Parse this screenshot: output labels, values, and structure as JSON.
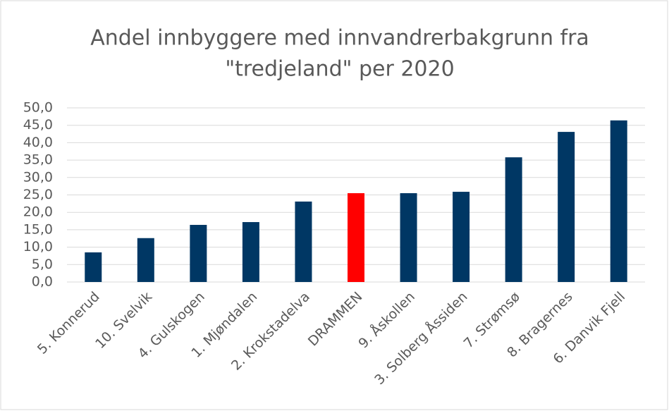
{
  "chart_data": {
    "type": "bar",
    "title": [
      "Andel innbyggere med innvandrerbakgrunn fra",
      "\"tredjeland\" per 2020"
    ],
    "categories": [
      "5. Konnerud",
      "10. Svelvik",
      "4. Gulskogen",
      "1. Mjøndalen",
      "2. Krokstadelva",
      "DRAMMEN",
      "9. Åskollen",
      "3. Solberg Åssiden",
      "7. Strømsø",
      "8. Bragernes",
      "6. Danvik Fjell"
    ],
    "values": [
      8.5,
      12.6,
      16.4,
      17.2,
      23.1,
      25.5,
      25.5,
      25.9,
      35.8,
      43.1,
      46.4
    ],
    "colors": [
      "#003764",
      "#003764",
      "#003764",
      "#003764",
      "#003764",
      "#ff0000",
      "#003764",
      "#003764",
      "#003764",
      "#003764",
      "#003764"
    ],
    "ylim": [
      0,
      50
    ],
    "yticks": [
      {
        "value": 0,
        "label": "0,0"
      },
      {
        "value": 5,
        "label": "5,0"
      },
      {
        "value": 10,
        "label": "10,0"
      },
      {
        "value": 15,
        "label": "15,0"
      },
      {
        "value": 20,
        "label": "20,0"
      },
      {
        "value": 25,
        "label": "25,0"
      },
      {
        "value": 30,
        "label": "30,0"
      },
      {
        "value": 35,
        "label": "35,0"
      },
      {
        "value": 40,
        "label": "40,0"
      },
      {
        "value": 45,
        "label": "45,0"
      },
      {
        "value": 50,
        "label": "50,0"
      }
    ],
    "grid": true
  }
}
